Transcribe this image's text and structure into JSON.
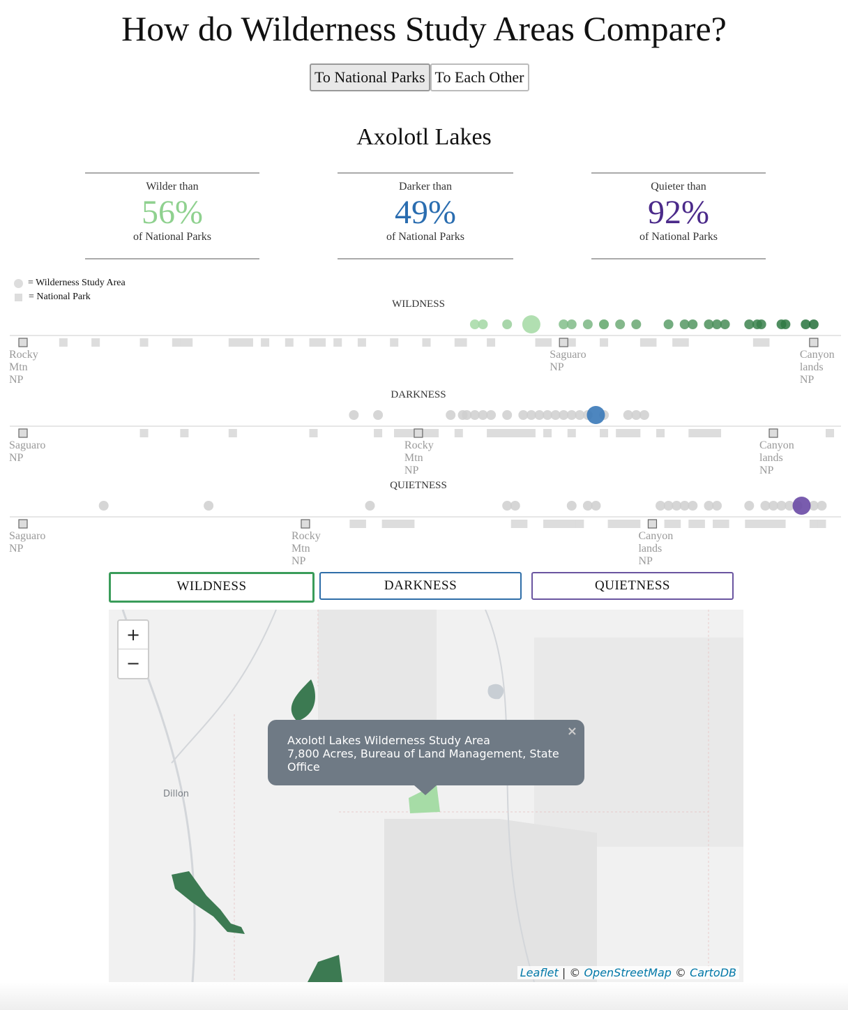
{
  "page_title": "How do Wilderness Study Areas Compare?",
  "toggle": {
    "national_parks": "To National Parks",
    "each_other": "To Each Other",
    "active": "national_parks"
  },
  "area_name": "Axolotl Lakes",
  "stats": [
    {
      "label": "Wilder than",
      "value": "56%",
      "sub": "of National Parks",
      "color": "#8fd18f"
    },
    {
      "label": "Darker than",
      "value": "49%",
      "sub": "of National Parks",
      "color": "#2a6db0"
    },
    {
      "label": "Quieter than",
      "value": "92%",
      "sub": "of National Parks",
      "color": "#4b2a8a"
    }
  ],
  "legend": {
    "wsa": "= Wilderness Study Area",
    "np": "= National Park"
  },
  "strips": [
    {
      "title": "WILDNESS",
      "kind": "wild",
      "highlight": 0.63,
      "wsa": [
        0.56,
        0.57,
        0.6,
        0.67,
        0.68,
        0.7,
        0.72,
        0.72,
        0.74,
        0.76,
        0.8,
        0.82,
        0.83,
        0.85,
        0.86,
        0.87,
        0.9,
        0.91,
        0.915,
        0.94,
        0.945,
        0.97,
        0.98
      ],
      "np": [
        0.05,
        0.09,
        0.15,
        0.19,
        0.2,
        0.205,
        0.26,
        0.27,
        0.28,
        0.3,
        0.33,
        0.36,
        0.37,
        0.39,
        0.42,
        0.46,
        0.5,
        0.54,
        0.545,
        0.58,
        0.64,
        0.65,
        0.68,
        0.72,
        0.77,
        0.78,
        0.81,
        0.82,
        0.91,
        0.92
      ],
      "labeled": [
        {
          "pos": 0.0,
          "lines": [
            "Rocky",
            "Mtn",
            "NP"
          ]
        },
        {
          "pos": 0.67,
          "lines": [
            "Saguaro",
            "NP"
          ]
        },
        {
          "pos": 0.98,
          "lines": [
            "Canyon",
            "lands",
            "NP"
          ]
        }
      ]
    },
    {
      "title": "DARKNESS",
      "kind": "dark",
      "highlight": 0.71,
      "wsa": [
        0.41,
        0.44,
        0.53,
        0.545,
        0.55,
        0.56,
        0.57,
        0.58,
        0.6,
        0.62,
        0.63,
        0.64,
        0.65,
        0.66,
        0.67,
        0.68,
        0.69,
        0.7,
        0.72,
        0.75,
        0.76,
        0.77
      ],
      "np": [
        0.15,
        0.2,
        0.26,
        0.36,
        0.44,
        0.465,
        0.47,
        0.48,
        0.5,
        0.51,
        0.54,
        0.58,
        0.59,
        0.6,
        0.61,
        0.62,
        0.63,
        0.65,
        0.68,
        0.72,
        0.74,
        0.75,
        0.76,
        0.79,
        0.83,
        0.84,
        0.85,
        0.86,
        1.0
      ],
      "labeled": [
        {
          "pos": 0.0,
          "lines": [
            "Saguaro",
            "NP"
          ]
        },
        {
          "pos": 0.49,
          "lines": [
            "Rocky",
            "Mtn",
            "NP"
          ]
        },
        {
          "pos": 0.93,
          "lines": [
            "Canyon",
            "lands",
            "NP"
          ]
        }
      ]
    },
    {
      "title": "QUIETNESS",
      "kind": "quiet",
      "highlight": 0.965,
      "wsa": [
        0.1,
        0.23,
        0.43,
        0.6,
        0.61,
        0.68,
        0.7,
        0.71,
        0.79,
        0.8,
        0.81,
        0.82,
        0.83,
        0.85,
        0.86,
        0.9,
        0.92,
        0.93,
        0.94,
        0.95,
        0.96,
        0.98,
        0.99
      ],
      "np": [
        0.41,
        0.42,
        0.45,
        0.46,
        0.47,
        0.48,
        0.61,
        0.62,
        0.65,
        0.66,
        0.67,
        0.68,
        0.69,
        0.73,
        0.74,
        0.75,
        0.76,
        0.8,
        0.81,
        0.83,
        0.84,
        0.86,
        0.87,
        0.9,
        0.91,
        0.92,
        0.93,
        0.94,
        0.98,
        0.99
      ],
      "labeled": [
        {
          "pos": 0.0,
          "lines": [
            "Saguaro",
            "NP"
          ]
        },
        {
          "pos": 0.35,
          "lines": [
            "Rocky",
            "Mtn",
            "NP"
          ]
        },
        {
          "pos": 0.78,
          "lines": [
            "Canyon",
            "lands",
            "NP"
          ]
        }
      ]
    }
  ],
  "metric_tabs": [
    {
      "label": "WILDNESS",
      "color": "#3a9c5a",
      "active": true
    },
    {
      "label": "DARKNESS",
      "color": "#2f6ea8",
      "active": false
    },
    {
      "label": "QUIETNESS",
      "color": "#6a55a0",
      "active": false
    }
  ],
  "map": {
    "zoom_in": "+",
    "zoom_out": "−",
    "town_label": "Dillon",
    "popup": {
      "title": "Axolotl Lakes Wilderness Study Area",
      "detail": "7,800 Acres, Bureau of Land Management, State Office",
      "close": "×"
    },
    "attribution": {
      "leaflet": "Leaflet",
      "sep1": " | © ",
      "osm": "OpenStreetMap",
      "sep2": " © ",
      "carto": "CartoDB"
    }
  }
}
